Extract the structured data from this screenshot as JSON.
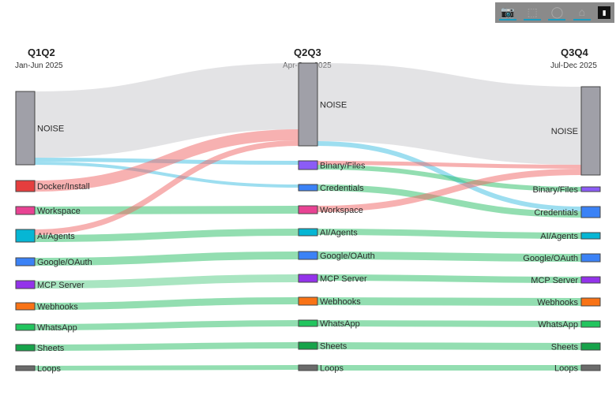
{
  "modebar": {
    "icons": [
      "camera-icon",
      "box-select-icon",
      "lasso-select-icon",
      "home-icon",
      "plotly-logo-icon"
    ]
  },
  "columns": [
    {
      "title": "Q1Q2",
      "subtitle": "Jan-Jun 2025"
    },
    {
      "title": "Q2Q3",
      "subtitle": "Apr-Sep 2025"
    },
    {
      "title": "Q3Q4",
      "subtitle": "Jul-Dec 2025"
    }
  ],
  "chart_data": {
    "type": "sankey",
    "nodes": [
      {
        "label": "NOISE",
        "column": 0,
        "color": "#a0a0a8"
      },
      {
        "label": "Docker/Install",
        "column": 0,
        "color": "#e53e3e"
      },
      {
        "label": "Workspace",
        "column": 0,
        "color": "#e84393"
      },
      {
        "label": "AI/Agents",
        "column": 0,
        "color": "#06b6d4"
      },
      {
        "label": "Google/OAuth",
        "column": 0,
        "color": "#3b82f6"
      },
      {
        "label": "MCP Server",
        "column": 0,
        "color": "#9333ea"
      },
      {
        "label": "Webhooks",
        "column": 0,
        "color": "#f97316"
      },
      {
        "label": "WhatsApp",
        "column": 0,
        "color": "#22c55e"
      },
      {
        "label": "Sheets",
        "column": 0,
        "color": "#16a34a"
      },
      {
        "label": "Loops",
        "column": 0,
        "color": "#6b6b6b"
      },
      {
        "label": "NOISE",
        "column": 1,
        "color": "#a0a0a8"
      },
      {
        "label": "Binary/Files",
        "column": 1,
        "color": "#8b5cf6"
      },
      {
        "label": "Credentials",
        "column": 1,
        "color": "#3b82f6"
      },
      {
        "label": "Workspace",
        "column": 1,
        "color": "#e84393"
      },
      {
        "label": "AI/Agents",
        "column": 1,
        "color": "#06b6d4"
      },
      {
        "label": "Google/OAuth",
        "column": 1,
        "color": "#3b82f6"
      },
      {
        "label": "MCP Server",
        "column": 1,
        "color": "#9333ea"
      },
      {
        "label": "Webhooks",
        "column": 1,
        "color": "#f97316"
      },
      {
        "label": "WhatsApp",
        "column": 1,
        "color": "#22c55e"
      },
      {
        "label": "Sheets",
        "column": 1,
        "color": "#16a34a"
      },
      {
        "label": "Loops",
        "column": 1,
        "color": "#6b6b6b"
      },
      {
        "label": "NOISE",
        "column": 2,
        "color": "#a0a0a8"
      },
      {
        "label": "Binary/Files",
        "column": 2,
        "color": "#8b5cf6"
      },
      {
        "label": "Credentials",
        "column": 2,
        "color": "#3b82f6"
      },
      {
        "label": "AI/Agents",
        "column": 2,
        "color": "#06b6d4"
      },
      {
        "label": "Google/OAuth",
        "column": 2,
        "color": "#3b82f6"
      },
      {
        "label": "MCP Server",
        "column": 2,
        "color": "#9333ea"
      },
      {
        "label": "Webhooks",
        "column": 2,
        "color": "#f97316"
      },
      {
        "label": "WhatsApp",
        "column": 2,
        "color": "#22c55e"
      },
      {
        "label": "Sheets",
        "column": 2,
        "color": "#16a34a"
      },
      {
        "label": "Loops",
        "column": 2,
        "color": "#6b6b6b"
      }
    ],
    "links": [
      {
        "source": 0,
        "target": 10,
        "value": 84,
        "color": "rgba(200,200,204,0.5)"
      },
      {
        "source": 0,
        "target": 11,
        "value": 5,
        "color": "rgba(60,190,225,0.5)"
      },
      {
        "source": 0,
        "target": 12,
        "value": 4,
        "color": "rgba(60,190,225,0.5)"
      },
      {
        "source": 1,
        "target": 10,
        "value": 14,
        "color": "rgba(240,100,100,0.5)"
      },
      {
        "source": 2,
        "target": 13,
        "value": 10,
        "color": "rgba(40,190,100,0.5)"
      },
      {
        "source": 3,
        "target": 10,
        "value": 7,
        "color": "rgba(240,100,100,0.5)"
      },
      {
        "source": 3,
        "target": 14,
        "value": 9,
        "color": "rgba(40,190,100,0.5)"
      },
      {
        "source": 4,
        "target": 15,
        "value": 10,
        "color": "rgba(40,190,100,0.5)"
      },
      {
        "source": 5,
        "target": 16,
        "value": 10,
        "color": "rgba(40,190,100,0.4)"
      },
      {
        "source": 6,
        "target": 17,
        "value": 9,
        "color": "rgba(40,190,100,0.5)"
      },
      {
        "source": 7,
        "target": 18,
        "value": 8,
        "color": "rgba(40,190,100,0.5)"
      },
      {
        "source": 8,
        "target": 19,
        "value": 8,
        "color": "rgba(40,190,100,0.5)"
      },
      {
        "source": 9,
        "target": 20,
        "value": 6,
        "color": "rgba(40,190,100,0.5)"
      },
      {
        "source": 10,
        "target": 21,
        "value": 99,
        "color": "rgba(200,200,204,0.5)"
      },
      {
        "source": 10,
        "target": 23,
        "value": 6,
        "color": "rgba(60,190,225,0.5)"
      },
      {
        "source": 11,
        "target": 21,
        "value": 5,
        "color": "rgba(240,100,100,0.5)"
      },
      {
        "source": 11,
        "target": 22,
        "value": 6,
        "color": "rgba(40,190,100,0.5)"
      },
      {
        "source": 12,
        "target": 23,
        "value": 8,
        "color": "rgba(40,190,100,0.5)"
      },
      {
        "source": 13,
        "target": 21,
        "value": 8,
        "color": "rgba(240,100,100,0.5)"
      },
      {
        "source": 14,
        "target": 24,
        "value": 8,
        "color": "rgba(40,190,100,0.5)"
      },
      {
        "source": 15,
        "target": 25,
        "value": 10,
        "color": "rgba(40,190,100,0.5)"
      },
      {
        "source": 16,
        "target": 26,
        "value": 8,
        "color": "rgba(40,190,100,0.5)"
      },
      {
        "source": 17,
        "target": 27,
        "value": 10,
        "color": "rgba(40,190,100,0.5)"
      },
      {
        "source": 18,
        "target": 28,
        "value": 8,
        "color": "rgba(40,190,100,0.5)"
      },
      {
        "source": 19,
        "target": 29,
        "value": 9,
        "color": "rgba(40,190,100,0.5)"
      },
      {
        "source": 20,
        "target": 30,
        "value": 7,
        "color": "rgba(40,190,100,0.5)"
      }
    ]
  }
}
